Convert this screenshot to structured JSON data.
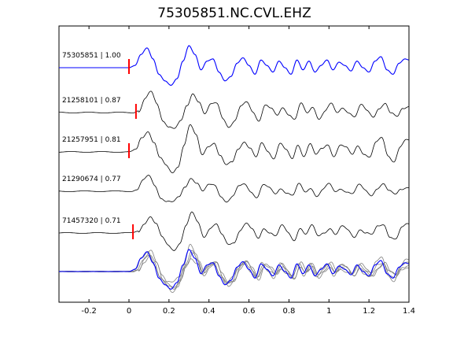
{
  "chart_data": {
    "type": "line",
    "title": "75305851.NC.CVL.EHZ",
    "xlabel": "",
    "ylabel": "",
    "xlim": [
      -0.35,
      1.4
    ],
    "x_ticks": [
      -0.2,
      0,
      0.2,
      0.4,
      0.6,
      0.8,
      1,
      1.2,
      1.4
    ],
    "x_tick_labels": [
      "-0.2",
      "0",
      "0.2",
      "0.4",
      "0.6",
      "0.8",
      "1",
      "1.2",
      "1.4"
    ],
    "grid": false,
    "pick_color": "#ff0000",
    "reference_color": "#0000ff",
    "trace_color": "#000000",
    "stack_color": "#808080",
    "traces": [
      {
        "label": "75305851 | 1.00",
        "pick": 0.0,
        "shift": 0.0,
        "gain": 1.0,
        "color": "#0000ff"
      },
      {
        "label": "21258101 | 0.87",
        "pick": 0.035,
        "shift": 0.02,
        "gain": 0.95,
        "color": "#000000"
      },
      {
        "label": "21257951 | 0.81",
        "pick": 0.0,
        "shift": 0.005,
        "gain": 1.15,
        "color": "#000000"
      },
      {
        "label": "21290674 | 0.77",
        "pick": null,
        "shift": 0.01,
        "gain": 0.7,
        "color": "#000000"
      },
      {
        "label": "71457320 | 0.71",
        "pick": 0.02,
        "shift": 0.015,
        "gain": 0.85,
        "color": "#000000"
      }
    ],
    "reference_trace_samples": {
      "x": [
        -0.35,
        -0.25,
        -0.15,
        -0.05,
        0.0,
        0.03,
        0.06,
        0.09,
        0.12,
        0.15,
        0.18,
        0.21,
        0.24,
        0.27,
        0.3,
        0.33,
        0.36,
        0.39,
        0.42,
        0.45,
        0.48,
        0.51,
        0.54,
        0.57,
        0.6,
        0.63,
        0.66,
        0.69,
        0.72,
        0.75,
        0.78,
        0.81,
        0.84,
        0.87,
        0.9,
        0.93,
        0.96,
        0.99,
        1.02,
        1.05,
        1.08,
        1.11,
        1.14,
        1.17,
        1.2,
        1.23,
        1.26,
        1.29,
        1.32,
        1.35,
        1.38,
        1.4
      ],
      "y": [
        0.0,
        0.0,
        0.0,
        0.0,
        0.0,
        0.1,
        0.6,
        0.9,
        0.4,
        -0.3,
        -0.6,
        -0.8,
        -0.5,
        0.3,
        1.0,
        0.6,
        -0.1,
        0.3,
        0.4,
        -0.2,
        -0.6,
        -0.4,
        0.2,
        0.45,
        0.1,
        -0.3,
        0.35,
        0.1,
        -0.2,
        0.3,
        0.0,
        -0.3,
        0.35,
        -0.1,
        0.3,
        -0.2,
        0.1,
        0.35,
        -0.1,
        0.25,
        0.1,
        -0.15,
        0.3,
        0.0,
        -0.2,
        0.3,
        0.5,
        -0.1,
        -0.3,
        0.2,
        0.4,
        0.35
      ]
    }
  }
}
